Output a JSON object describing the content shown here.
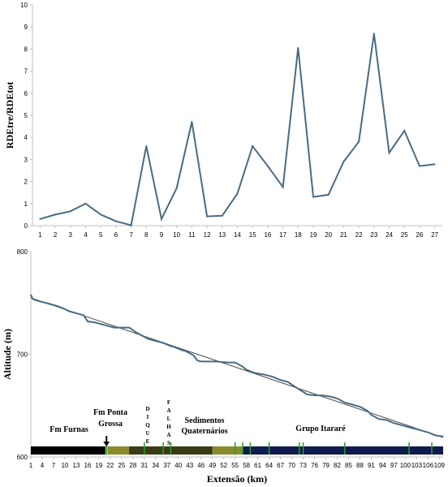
{
  "chart_data": [
    {
      "type": "line",
      "title": "",
      "xlabel": "",
      "ylabel": "RDEtre/RDEtot",
      "ylim": [
        0,
        10
      ],
      "yticks": [
        "0",
        "1",
        "2",
        "3",
        "4",
        "5",
        "6",
        "7",
        "8",
        "9",
        "10"
      ],
      "grid": false,
      "categories": [
        "1",
        "2",
        "3",
        "4",
        "5",
        "6",
        "7",
        "8",
        "9",
        "10",
        "11",
        "12",
        "13",
        "14",
        "15",
        "16",
        "17",
        "18",
        "19",
        "20",
        "21",
        "22",
        "23",
        "24",
        "25",
        "26",
        "27"
      ],
      "series": [
        {
          "values": [
            0.3,
            0.5,
            0.65,
            1.0,
            0.5,
            0.2,
            0.02,
            3.6,
            0.3,
            1.7,
            4.7,
            0.42,
            0.45,
            1.45,
            3.6,
            2.7,
            1.75,
            8.05,
            1.3,
            1.4,
            2.9,
            3.8,
            8.7,
            3.3,
            4.3,
            2.7,
            2.78
          ]
        }
      ],
      "color": "#4a6b82"
    },
    {
      "type": "line",
      "title": "",
      "xlabel": "Extensão (km)",
      "ylabel": "Altitude (m)",
      "ylim": [
        600,
        800
      ],
      "xlim": [
        1,
        110
      ],
      "yticks": [
        "600",
        "700",
        "800"
      ],
      "xticks": [
        "1",
        "4",
        "7",
        "10",
        "13",
        "16",
        "19",
        "22",
        "25",
        "28",
        "31",
        "34",
        "37",
        "40",
        "43",
        "46",
        "49",
        "52",
        "55",
        "58",
        "61",
        "64",
        "67",
        "70",
        "73",
        "76",
        "79",
        "82",
        "85",
        "88",
        "91",
        "94",
        "97",
        "100",
        "103",
        "106",
        "109"
      ],
      "grid": false,
      "series": [
        {
          "x": [
            1,
            1.5,
            2,
            4,
            6,
            8,
            10,
            11,
            14,
            15,
            16,
            18,
            19,
            21,
            23,
            25,
            27,
            29,
            31,
            32,
            33,
            34,
            36,
            38,
            39,
            41,
            42,
            43,
            44,
            45,
            46,
            48,
            50,
            53,
            55,
            56,
            57,
            58,
            60,
            63,
            64,
            65,
            67,
            69,
            71,
            74,
            76,
            78,
            80,
            82,
            84,
            86,
            88,
            90,
            91,
            93,
            95,
            97,
            100,
            103,
            106,
            108,
            110
          ],
          "y": [
            758,
            754,
            753,
            751,
            749,
            747,
            744,
            742,
            739,
            738,
            732,
            731,
            730,
            728,
            726,
            726,
            726,
            721,
            717,
            715,
            714,
            713,
            711,
            708,
            707,
            704,
            703,
            701,
            699,
            694,
            693,
            693,
            693,
            692,
            692,
            690,
            688,
            685,
            682,
            680,
            679,
            678,
            675,
            673,
            668,
            661,
            660,
            660,
            659,
            657,
            653,
            651,
            649,
            645,
            641,
            637,
            636,
            633,
            630,
            627,
            624,
            621,
            620
          ]
        },
        {
          "x": [
            1,
            110
          ],
          "y": [
            755,
            619
          ]
        }
      ],
      "color": "#4a6b82",
      "trend_color": "#4f4f4f",
      "geology": {
        "units": [
          {
            "label": "Fm Furnas",
            "color": "#000000",
            "from": 1,
            "to": 21
          },
          {
            "label": "Fm Ponta Grossa",
            "color": "#8b8b2e",
            "from": 21,
            "to": 55
          },
          {
            "label": "Sedimentos Quaternários",
            "color": "#3b3b16",
            "from": 27,
            "to": 49
          },
          {
            "label": "Grupo Itararé",
            "color": "#0f1a4e",
            "from": 57,
            "to": 110
          }
        ],
        "secondary_bands": [
          {
            "color": "#8b8b2e",
            "from": 49,
            "to": 55
          },
          {
            "color": "#8b8b2e",
            "from": 55,
            "to": 57
          }
        ],
        "arrow_label": "Fm Ponta Grossa",
        "dique_label": "DIQUE",
        "falhas_label": "FALHAS",
        "markers_green": [
          21,
          31,
          36,
          38,
          55,
          57,
          59,
          64,
          72,
          73,
          84,
          101,
          107
        ],
        "band_color_primary": "#7a7a20"
      }
    }
  ]
}
